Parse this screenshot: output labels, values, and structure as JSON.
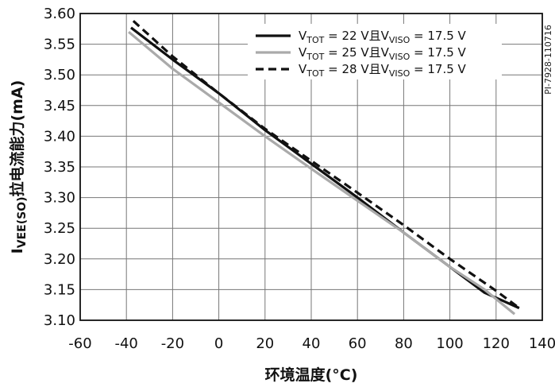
{
  "figure_id": "PI-7928-110716",
  "chart_data": {
    "type": "line",
    "xlabel": "环境温度(°C)",
    "ylabel": {
      "main": "I",
      "sub": "VEE(SO)",
      "rest": "拉电流能力(mA)"
    },
    "xlim": [
      -60,
      140
    ],
    "ylim": [
      3.1,
      3.6
    ],
    "x_ticks": [
      -60,
      -40,
      -20,
      0,
      20,
      40,
      60,
      80,
      100,
      120,
      140
    ],
    "y_ticks": [
      3.1,
      3.15,
      3.2,
      3.25,
      3.3,
      3.35,
      3.4,
      3.45,
      3.5,
      3.55,
      3.6
    ],
    "x_tick_labels": [
      "-60",
      "-40",
      "-20",
      "0",
      "20",
      "40",
      "60",
      "80",
      "100",
      "120",
      "140"
    ],
    "y_tick_labels": [
      "3.10",
      "3.15",
      "3.20",
      "3.25",
      "3.30",
      "3.35",
      "3.40",
      "3.45",
      "3.50",
      "3.55",
      "3.60"
    ],
    "grid": true,
    "legend_position": "top-right",
    "series": [
      {
        "name": "VTOT = 22 V且VVISO = 17.5 V",
        "legend": {
          "p1": "V",
          "s1": "TOT",
          "p2": " = 22 V且V",
          "s2": "VISO",
          "p3": " = 17.5 V"
        },
        "color": "#111111",
        "style": "solid",
        "x": [
          -38,
          -20,
          0,
          5,
          20,
          40,
          60,
          80,
          100,
          115,
          130
        ],
        "y": [
          3.577,
          3.525,
          3.47,
          3.455,
          3.41,
          3.355,
          3.3,
          3.243,
          3.187,
          3.145,
          3.12
        ]
      },
      {
        "name": "VTOT = 25 V且VVISO = 17.5 V",
        "legend": {
          "p1": "V",
          "s1": "TOT",
          "p2": " = 25 V且V",
          "s2": "VISO",
          "p3": " = 17.5 V"
        },
        "color": "#aaaaaa",
        "style": "solid",
        "x": [
          -39,
          -20,
          0,
          20,
          40,
          60,
          80,
          100,
          115,
          128
        ],
        "y": [
          3.57,
          3.51,
          3.455,
          3.4,
          3.347,
          3.295,
          3.243,
          3.187,
          3.15,
          3.11
        ]
      },
      {
        "name": "VTOT = 28 V且VVISO = 17.5 V",
        "legend": {
          "p1": "V",
          "s1": "TOT",
          "p2": " = 28 V且V",
          "s2": "VISO",
          "p3": " = 17.5 V"
        },
        "color": "#111111",
        "style": "dashed",
        "x": [
          -37,
          -20,
          0,
          20,
          40,
          60,
          80,
          100,
          120,
          130
        ],
        "y": [
          3.588,
          3.53,
          3.47,
          3.412,
          3.36,
          3.308,
          3.255,
          3.2,
          3.148,
          3.12
        ]
      }
    ]
  }
}
